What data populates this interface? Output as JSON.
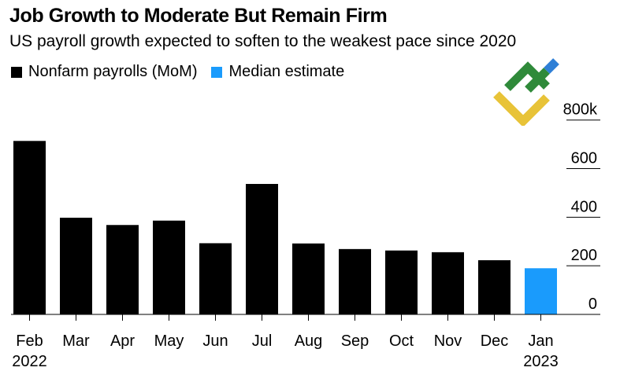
{
  "title": "Job Growth to Moderate But Remain Firm",
  "subtitle": "US payroll growth expected to soften to the weakest pace since 2020",
  "legend": [
    {
      "label": "Nonfarm payrolls (MoM)",
      "color": "#000000"
    },
    {
      "label": "Median estimate",
      "color": "#1a9bfc"
    }
  ],
  "colors": {
    "actual": "#000000",
    "estimate": "#1a9bfc",
    "grid": "#000000"
  },
  "logo": {
    "icon": "brand-logo-icon"
  },
  "chart_data": {
    "type": "bar",
    "title": "Job Growth to Moderate But Remain Firm",
    "xlabel": "",
    "ylabel": "",
    "categories": [
      "Feb",
      "Mar",
      "Apr",
      "May",
      "Jun",
      "Jul",
      "Aug",
      "Sep",
      "Oct",
      "Nov",
      "Dec",
      "Jan"
    ],
    "year_labels": {
      "Feb": "2022",
      "Jan": "2023"
    },
    "series": [
      {
        "name": "Nonfarm payrolls (MoM)",
        "values": [
          714,
          398,
          368,
          386,
          293,
          537,
          292,
          269,
          263,
          256,
          223,
          null
        ]
      },
      {
        "name": "Median estimate",
        "values": [
          null,
          null,
          null,
          null,
          null,
          null,
          null,
          null,
          null,
          null,
          null,
          190
        ]
      }
    ],
    "ylim": [
      0,
      880
    ],
    "yticks": [
      0,
      200,
      400,
      600,
      800
    ],
    "ytick_labels": [
      "0",
      "200",
      "400",
      "600",
      "800k"
    ],
    "grid": true
  }
}
